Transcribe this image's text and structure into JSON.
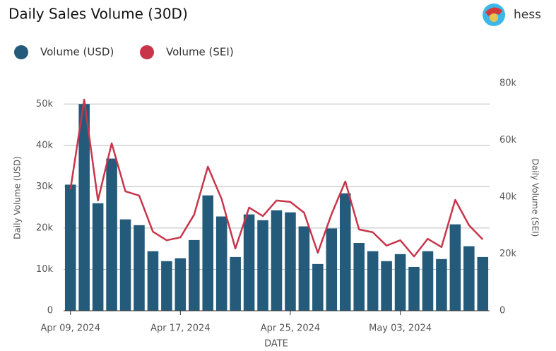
{
  "header": {
    "title": "Daily Sales Volume (30D)",
    "user": "hess"
  },
  "chart_data": {
    "type": "bar-line",
    "categories": [
      "Apr 09, 2024",
      null,
      null,
      null,
      null,
      null,
      null,
      null,
      "Apr 17, 2024",
      null,
      null,
      null,
      null,
      null,
      null,
      null,
      "Apr 25, 2024",
      null,
      null,
      null,
      null,
      null,
      null,
      null,
      "May 03, 2024",
      null,
      null,
      null,
      null,
      null,
      null
    ],
    "series": [
      {
        "name": "Volume (USD)",
        "color": "#245b7b",
        "type": "bar",
        "axis": "y",
        "values": [
          30500,
          50000,
          26000,
          36800,
          22100,
          20700,
          14400,
          12000,
          12700,
          17100,
          27900,
          22800,
          13000,
          23300,
          21900,
          24300,
          23800,
          20400,
          11300,
          19900,
          28400,
          16400,
          14400,
          12000,
          13700,
          10600,
          14400,
          12500,
          20900,
          15600,
          13000
        ]
      },
      {
        "name": "Volume (SEI)",
        "color": "#c8354b",
        "type": "line",
        "axis": "y2",
        "values": [
          42700,
          74300,
          38800,
          58900,
          42000,
          40500,
          27800,
          24800,
          25800,
          33800,
          50700,
          39300,
          21900,
          36300,
          33300,
          38800,
          38300,
          34500,
          20400,
          34000,
          45500,
          28600,
          27600,
          22900,
          24800,
          19100,
          25300,
          22400,
          39000,
          30100,
          25100
        ]
      }
    ],
    "xlabel": "DATE",
    "ylabel": "Daily Volume (USD)",
    "y2label": "Daily Volume (SEI)",
    "ylim": [
      0,
      55000
    ],
    "yticks": [
      0,
      {
        "value": 10000,
        "label": "10k"
      },
      {
        "value": 20000,
        "label": "20k"
      },
      {
        "value": 30000,
        "label": "30k"
      },
      {
        "value": 40000,
        "label": "40k"
      },
      {
        "value": 50000,
        "label": "50k"
      }
    ],
    "y2lim": [
      0,
      80000
    ],
    "y2ticks": [
      0,
      {
        "value": 20000,
        "label": "20k"
      },
      {
        "value": 40000,
        "label": "40k"
      },
      {
        "value": 60000,
        "label": "60k"
      },
      {
        "value": 80000,
        "label": "80k"
      }
    ],
    "grid": true,
    "legend": "top-left"
  }
}
